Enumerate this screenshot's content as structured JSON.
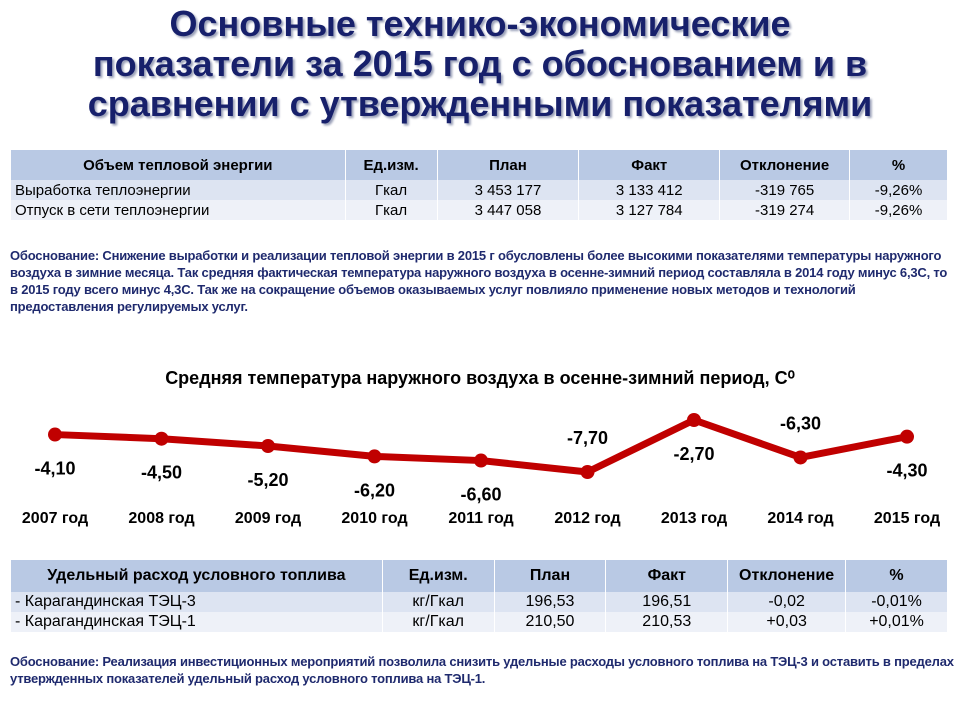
{
  "title": {
    "line1": "Основные технико-экономические",
    "line2": "показатели за 2015 год с обоснованием и в",
    "line3": "сравнении с утвержденными показателями"
  },
  "table1": {
    "headers": [
      "Объем тепловой энергии",
      "Ед.изм.",
      "План",
      "Факт",
      "Отклонение",
      "%"
    ],
    "rows": [
      [
        "Выработка теплоэнергии",
        "Гкал",
        "3 453 177",
        "3 133 412",
        "-319 765",
        "-9,26%"
      ],
      [
        "Отпуск в сети теплоэнергии",
        "Гкал",
        "3 447 058",
        "3 127 784",
        "-319 274",
        "-9,26%"
      ]
    ]
  },
  "note1": "Обоснование: Снижение выработки и реализации тепловой энергии в 2015 г обусловлены более высокими показателями температуры наружного воздуха в зимние месяца. Так средняя фактическая температура наружного воздуха в осенне-зимний период составляла в 2014 году минус 6,3С, то в 2015 году всего минус 4,3С. Так же на сокращение объемов оказываемых услуг повлияло применение новых методов и технологий предоставления регулируемых услуг.",
  "chart_data": {
    "type": "line",
    "title": "Средняя температура наружного воздуха в осенне-зимний период, С⁰",
    "categories": [
      "2007 год",
      "2008 год",
      "2009 год",
      "2010 год",
      "2011 год",
      "2012 год",
      "2013 год",
      "2014 год",
      "2015 год"
    ],
    "values": [
      -4.1,
      -4.5,
      -5.2,
      -6.2,
      -6.6,
      -7.7,
      -2.7,
      -6.3,
      -4.3
    ],
    "data_labels": [
      "-4,10",
      "-4,50",
      "-5,20",
      "-6,20",
      "-6,60",
      "-7,70",
      "-2,70",
      "-6,30",
      "-4,30"
    ],
    "line_color": "#c00000",
    "grid": false,
    "legend": "none"
  },
  "table2": {
    "headers": [
      "Удельный расход условного топлива",
      "Ед.изм.",
      "План",
      "Факт",
      "Отклонение",
      "%"
    ],
    "rows": [
      [
        "- Карагандинская ТЭЦ-3",
        "кг/Гкал",
        "196,53",
        "196,51",
        "-0,02",
        "-0,01%"
      ],
      [
        "- Карагандинская ТЭЦ-1",
        "кг/Гкал",
        "210,50",
        "210,53",
        "+0,03",
        "+0,01%"
      ]
    ]
  },
  "note2": "Обоснование: Реализация инвестиционных мероприятий позволила снизить удельные расходы условного топлива на ТЭЦ-3 и оставить в пределах утвержденных показателей удельный расход условного топлива на ТЭЦ-1.",
  "colors": {
    "title": "#17206b",
    "note_text": "#1f2a6e",
    "header_bg": "#b9c9e4",
    "row_bg": "#dde4f2",
    "line": "#c00000"
  }
}
